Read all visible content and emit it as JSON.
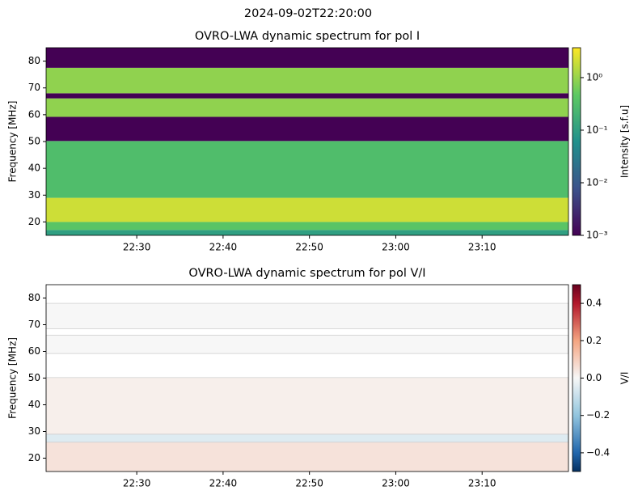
{
  "title": "2024-09-02T22:20:00",
  "chart_data": [
    {
      "type": "heatmap",
      "title": "OVRO-LWA dynamic spectrum for pol I",
      "ylabel": "Frequency [MHz]",
      "colorbar_label": "Intensity [s.f.u]",
      "cmap": "viridis",
      "cscale": "log",
      "xlim": [
        "22:19:30",
        "23:20:00"
      ],
      "xticks": [
        "22:30",
        "22:40",
        "22:50",
        "23:00",
        "23:10"
      ],
      "ylim": [
        15,
        85
      ],
      "yticks": [
        20,
        30,
        40,
        50,
        60,
        70,
        80
      ],
      "clim": [
        0.001,
        3.7
      ],
      "cticks": [
        {
          "value": 0.001,
          "label": "10⁻³"
        },
        {
          "value": 0.01,
          "label": "10⁻²"
        },
        {
          "value": 0.1,
          "label": "10⁻¹"
        },
        {
          "value": 1,
          "label": "10⁰"
        }
      ],
      "bands": [
        {
          "from": 15,
          "to": 17,
          "value": 0.1
        },
        {
          "from": 17,
          "to": 20,
          "value": 0.4
        },
        {
          "from": 20,
          "to": 29,
          "value": 2
        },
        {
          "from": 29,
          "to": 50.2,
          "value": 0.3
        },
        {
          "from": 50.2,
          "to": 59.2,
          "value": 0.001
        },
        {
          "from": 59.2,
          "to": 66.1,
          "value": 0.9
        },
        {
          "from": 66.1,
          "to": 68,
          "value": 0.001
        },
        {
          "from": 68,
          "to": 77.5,
          "value": 0.9
        },
        {
          "from": 77.5,
          "to": 85,
          "value": 0.001
        }
      ]
    },
    {
      "type": "heatmap",
      "title": "OVRO-LWA dynamic spectrum for pol V/I",
      "ylabel": "Frequency [MHz]",
      "colorbar_label": "V/I",
      "cmap": "RdBu_r",
      "cscale": "linear",
      "xlim": [
        "22:19:30",
        "23:20:00"
      ],
      "xticks": [
        "22:30",
        "22:40",
        "22:50",
        "23:00",
        "23:10"
      ],
      "ylim": [
        15,
        85
      ],
      "yticks": [
        20,
        30,
        40,
        50,
        60,
        70,
        80
      ],
      "clim": [
        -0.5,
        0.5
      ],
      "cticks": [
        {
          "value": -0.4,
          "label": "−0.4"
        },
        {
          "value": -0.2,
          "label": "−0.2"
        },
        {
          "value": 0,
          "label": "0.0"
        },
        0.2,
        0.4
      ],
      "bands": [
        {
          "from": 15,
          "to": 26,
          "value": 0.05
        },
        {
          "from": 26,
          "to": 29,
          "value": -0.05
        },
        {
          "from": 29,
          "to": 50.2,
          "value": 0.02
        },
        {
          "from": 59.2,
          "to": 66.1,
          "value": 0
        },
        {
          "from": 68.5,
          "to": 78,
          "value": 0
        }
      ]
    }
  ]
}
